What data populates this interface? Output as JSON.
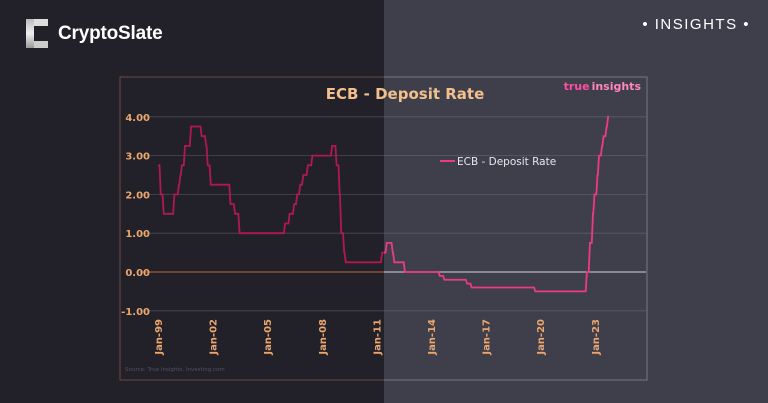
{
  "header": {
    "brand": "CryptoSlate",
    "section": "• INSIGHTS •"
  },
  "colors": {
    "line_left": "#b0194e",
    "line_right": "#ec3a84",
    "title": "#f2c08c",
    "tick": "#eaa66c",
    "brand_pink": "#ff4fa0"
  },
  "chart_data": {
    "type": "line",
    "title": "ECB - Deposit Rate",
    "watermark": {
      "part1": "true",
      "part2": "insights"
    },
    "source": "Source: True Insights, Investing.com",
    "legend": {
      "position": "top-right",
      "entries": [
        "ECB - Deposit Rate"
      ]
    },
    "grid": true,
    "ylim": [
      -1,
      4
    ],
    "yticks": [
      "4.00",
      "3.00",
      "2.00",
      "1.00",
      "0.00",
      "-1.00"
    ],
    "ytick_values": [
      4,
      3,
      2,
      1,
      0,
      -1
    ],
    "xticks": [
      "Jan-99",
      "Jan-02",
      "Jan-05",
      "Jan-08",
      "Jan-11",
      "Jan-14",
      "Jan-17",
      "Jan-20",
      "Jan-23"
    ],
    "xtick_dates": [
      "1999-01",
      "2002-01",
      "2005-01",
      "2008-01",
      "2011-01",
      "2014-01",
      "2017-01",
      "2020-01",
      "2023-01"
    ],
    "series": [
      {
        "name": "ECB - Deposit Rate",
        "step": true,
        "points": [
          [
            "1999-01",
            2.75
          ],
          [
            "1999-02",
            2.0
          ],
          [
            "1999-04",
            1.5
          ],
          [
            "1999-11",
            2.0
          ],
          [
            "2000-02",
            2.25
          ],
          [
            "2000-03",
            2.5
          ],
          [
            "2000-04",
            2.75
          ],
          [
            "2000-06",
            3.25
          ],
          [
            "2000-10",
            3.75
          ],
          [
            "2001-05",
            3.5
          ],
          [
            "2001-08",
            3.25
          ],
          [
            "2001-09",
            2.75
          ],
          [
            "2001-11",
            2.25
          ],
          [
            "2002-12",
            1.75
          ],
          [
            "2003-03",
            1.5
          ],
          [
            "2003-06",
            1.0
          ],
          [
            "2005-12",
            1.25
          ],
          [
            "2006-03",
            1.5
          ],
          [
            "2006-06",
            1.75
          ],
          [
            "2006-08",
            2.0
          ],
          [
            "2006-10",
            2.25
          ],
          [
            "2006-12",
            2.5
          ],
          [
            "2007-03",
            2.75
          ],
          [
            "2007-06",
            3.0
          ],
          [
            "2008-07",
            3.25
          ],
          [
            "2008-10",
            2.75
          ],
          [
            "2008-12",
            2.0
          ],
          [
            "2009-01",
            1.0
          ],
          [
            "2009-03",
            0.5
          ],
          [
            "2009-04",
            0.25
          ],
          [
            "2011-04",
            0.5
          ],
          [
            "2011-07",
            0.75
          ],
          [
            "2011-11",
            0.5
          ],
          [
            "2011-12",
            0.25
          ],
          [
            "2012-07",
            0.0
          ],
          [
            "2014-06",
            -0.1
          ],
          [
            "2014-09",
            -0.2
          ],
          [
            "2015-12",
            -0.3
          ],
          [
            "2016-03",
            -0.4
          ],
          [
            "2019-09",
            -0.5
          ],
          [
            "2022-07",
            0.0
          ],
          [
            "2022-09",
            0.75
          ],
          [
            "2022-11",
            1.5
          ],
          [
            "2022-12",
            2.0
          ],
          [
            "2023-02",
            2.5
          ],
          [
            "2023-03",
            3.0
          ],
          [
            "2023-05",
            3.25
          ],
          [
            "2023-06",
            3.5
          ],
          [
            "2023-08",
            3.75
          ],
          [
            "2023-09",
            4.0
          ]
        ]
      }
    ]
  }
}
